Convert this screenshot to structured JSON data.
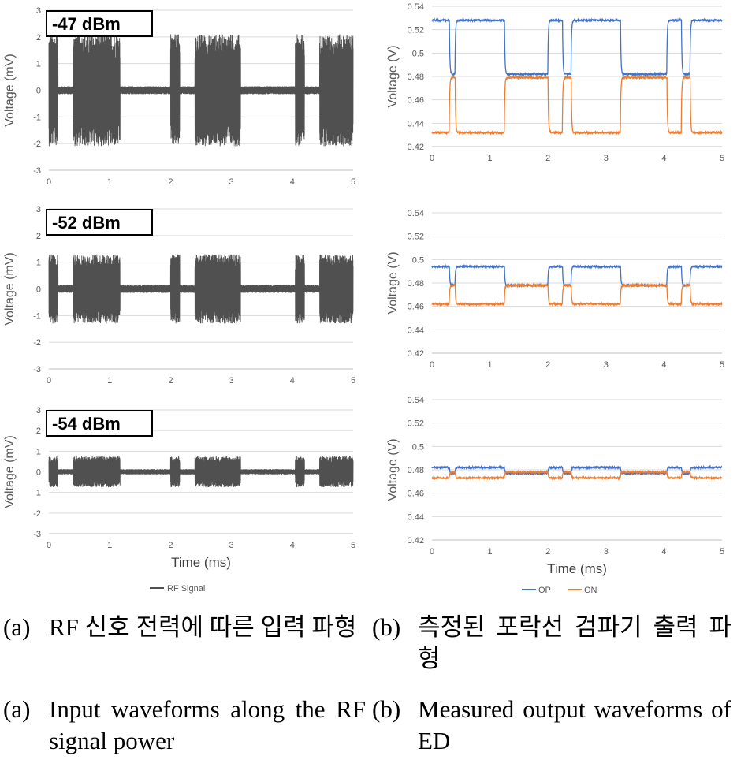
{
  "chart_data": [
    {
      "panel": "a-1",
      "type": "line",
      "annotation": "-47 dBm",
      "ylabel": "Voltage (mV)",
      "xlabel": "",
      "xlim": [
        0,
        5
      ],
      "ylim": [
        -3,
        3
      ],
      "xticks": [
        "0",
        "1",
        "2",
        "3",
        "4",
        "5"
      ],
      "yticks": [
        "3",
        "2",
        "1",
        "0",
        "-1",
        "-2",
        "-3"
      ],
      "series": [
        {
          "name": "RF Signal",
          "color": "#505050",
          "burst_segments": [
            [
              0.0,
              0.15
            ],
            [
              0.4,
              1.17
            ],
            [
              2.0,
              2.15
            ],
            [
              2.4,
              3.15
            ],
            [
              4.05,
              4.2
            ],
            [
              4.45,
              5.0
            ]
          ],
          "burst_amplitude": 2.1,
          "idle_amplitude": 0.15
        }
      ]
    },
    {
      "panel": "b-1",
      "type": "line",
      "annotation": "",
      "ylabel": "Voltage (V)",
      "xlabel": "",
      "xlim": [
        0,
        5
      ],
      "ylim": [
        0.42,
        0.54
      ],
      "xticks": [
        "0",
        "1",
        "2",
        "3",
        "4",
        "5"
      ],
      "yticks": [
        "0.54",
        "0.52",
        "0.5",
        "0.48",
        "0.46",
        "0.44",
        "0.42"
      ],
      "series": [
        {
          "name": "OP",
          "color": "#4472C4",
          "high": 0.528,
          "low": 0.482,
          "high_segments": [
            [
              0.0,
              0.3
            ],
            [
              0.4,
              1.25
            ],
            [
              2.0,
              2.25
            ],
            [
              2.4,
              3.25
            ],
            [
              4.05,
              4.3
            ],
            [
              4.45,
              5.0
            ]
          ]
        },
        {
          "name": "ON",
          "color": "#ED7D31",
          "high": 0.479,
          "low": 0.432,
          "high_segments": [
            [
              0.3,
              0.4
            ],
            [
              1.25,
              2.0
            ],
            [
              2.25,
              2.4
            ],
            [
              3.25,
              4.05
            ],
            [
              4.3,
              4.45
            ]
          ]
        }
      ]
    },
    {
      "panel": "a-2",
      "type": "line",
      "annotation": "-52 dBm",
      "ylabel": "Voltage (mV)",
      "xlabel": "",
      "xlim": [
        0,
        5
      ],
      "ylim": [
        -3,
        3
      ],
      "xticks": [
        "0",
        "1",
        "2",
        "3",
        "4",
        "5"
      ],
      "yticks": [
        "3",
        "2",
        "1",
        "0",
        "-1",
        "-2",
        "-3"
      ],
      "series": [
        {
          "name": "RF Signal",
          "color": "#505050",
          "burst_segments": [
            [
              0.0,
              0.15
            ],
            [
              0.4,
              1.17
            ],
            [
              2.0,
              2.15
            ],
            [
              2.4,
              3.15
            ],
            [
              4.05,
              4.2
            ],
            [
              4.45,
              5.0
            ]
          ],
          "burst_amplitude": 1.3,
          "idle_amplitude": 0.15
        }
      ]
    },
    {
      "panel": "b-2",
      "type": "line",
      "annotation": "",
      "ylabel": "Voltage (V)",
      "xlabel": "",
      "xlim": [
        0,
        5
      ],
      "ylim": [
        0.42,
        0.54
      ],
      "xticks": [
        "0",
        "1",
        "2",
        "3",
        "4",
        "5"
      ],
      "yticks": [
        "0.54",
        "0.52",
        "0.5",
        "0.48",
        "0.46",
        "0.44",
        "0.42"
      ],
      "series": [
        {
          "name": "OP",
          "color": "#4472C4",
          "high": 0.494,
          "low": 0.478,
          "high_segments": [
            [
              0.0,
              0.3
            ],
            [
              0.4,
              1.25
            ],
            [
              2.0,
              2.25
            ],
            [
              2.4,
              3.25
            ],
            [
              4.05,
              4.3
            ],
            [
              4.45,
              5.0
            ]
          ]
        },
        {
          "name": "ON",
          "color": "#ED7D31",
          "high": 0.478,
          "low": 0.462,
          "high_segments": [
            [
              0.3,
              0.4
            ],
            [
              1.25,
              2.0
            ],
            [
              2.25,
              2.4
            ],
            [
              3.25,
              4.05
            ],
            [
              4.3,
              4.45
            ]
          ]
        }
      ]
    },
    {
      "panel": "a-3",
      "type": "line",
      "annotation": "-54 dBm",
      "ylabel": "Voltage (mV)",
      "xlabel": "Time (ms)",
      "xlim": [
        0,
        5
      ],
      "ylim": [
        -3,
        3
      ],
      "xticks": [
        "0",
        "1",
        "2",
        "3",
        "4",
        "5"
      ],
      "yticks": [
        "3",
        "2",
        "1",
        "0",
        "-1",
        "-2",
        "-3"
      ],
      "series": [
        {
          "name": "RF Signal",
          "color": "#505050",
          "burst_segments": [
            [
              0.0,
              0.15
            ],
            [
              0.4,
              1.17
            ],
            [
              2.0,
              2.15
            ],
            [
              2.4,
              3.15
            ],
            [
              4.05,
              4.2
            ],
            [
              4.45,
              5.0
            ]
          ],
          "burst_amplitude": 0.75,
          "idle_amplitude": 0.13
        }
      ]
    },
    {
      "panel": "b-3",
      "type": "line",
      "annotation": "",
      "ylabel": "Voltage (V)",
      "xlabel": "Time (ms)",
      "xlim": [
        0,
        5
      ],
      "ylim": [
        0.42,
        0.54
      ],
      "xticks": [
        "0",
        "1",
        "2",
        "3",
        "4",
        "5"
      ],
      "yticks": [
        "0.54",
        "0.52",
        "0.5",
        "0.48",
        "0.46",
        "0.44",
        "0.42"
      ],
      "series": [
        {
          "name": "OP",
          "color": "#4472C4",
          "high": 0.482,
          "low": 0.477,
          "high_segments": [
            [
              0.0,
              0.3
            ],
            [
              0.4,
              1.25
            ],
            [
              2.0,
              2.25
            ],
            [
              2.4,
              3.25
            ],
            [
              4.05,
              4.3
            ],
            [
              4.45,
              5.0
            ]
          ]
        },
        {
          "name": "ON",
          "color": "#ED7D31",
          "high": 0.478,
          "low": 0.473,
          "high_segments": [
            [
              0.3,
              0.4
            ],
            [
              1.25,
              2.0
            ],
            [
              2.25,
              2.4
            ],
            [
              3.25,
              4.05
            ],
            [
              4.3,
              4.45
            ]
          ]
        }
      ]
    }
  ],
  "legend": {
    "a": [
      {
        "label": "RF Signal",
        "color": "#505050"
      }
    ],
    "b": [
      {
        "label": "OP",
        "color": "#4472C4"
      },
      {
        "label": "ON",
        "color": "#ED7D31"
      }
    ]
  },
  "captions": {
    "a_ko_prefix": "(a)",
    "a_ko": "RF 신호 전력에 따른 입력 파형",
    "b_ko_prefix": "(b)",
    "b_ko": "측정된 포락선 검파기 출력 파형",
    "a_en_prefix": "(a)",
    "a_en": "Input waveforms along the RF signal power",
    "b_en_prefix": "(b)",
    "b_en": "Measured output waveforms of ED"
  }
}
